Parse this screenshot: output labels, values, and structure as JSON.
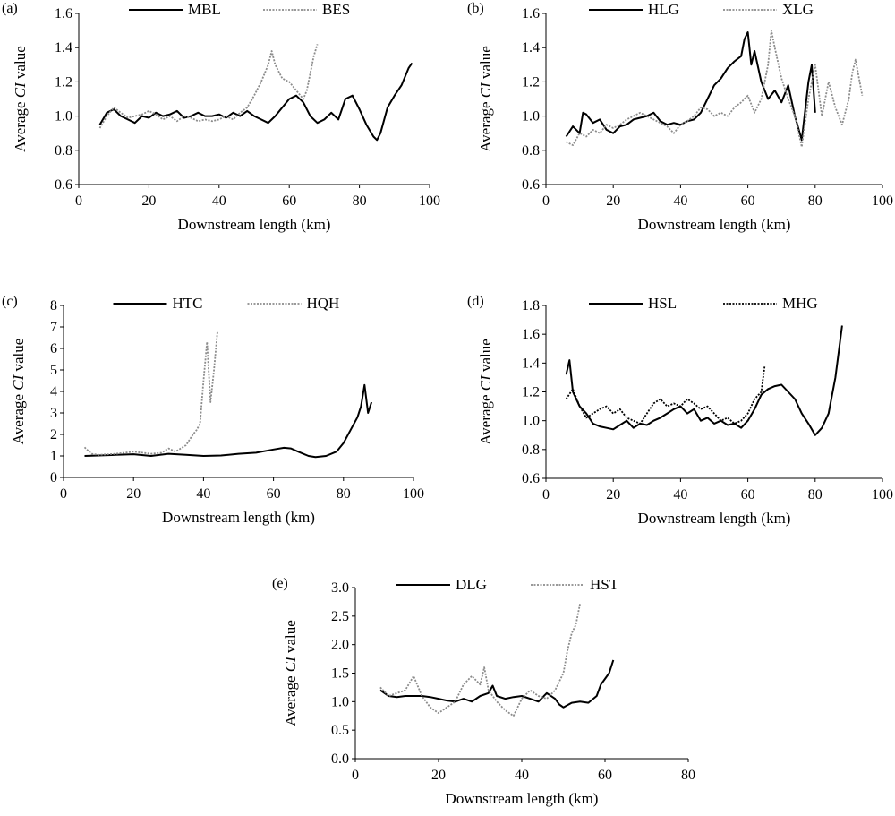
{
  "chart_data": [
    {
      "type": "line",
      "panel_label": "(a)",
      "xlabel": "Downstream length (km)",
      "ylabel_prefix": "Average ",
      "ylabel_italic": "CI",
      "ylabel_suffix": " value",
      "xlim": [
        0,
        100
      ],
      "xticks": [
        0,
        20,
        40,
        60,
        80,
        100
      ],
      "xtick_labels": [
        "0",
        "20",
        "40",
        "60",
        "80",
        "100"
      ],
      "ylim": [
        0.6,
        1.6
      ],
      "yticks": [
        0.6,
        0.8,
        1.0,
        1.2,
        1.4,
        1.6
      ],
      "ytick_labels": [
        "0.6",
        "0.8",
        "1.0",
        "1.2",
        "1.4",
        "1.6"
      ],
      "grid": false,
      "legend_position": "top",
      "series": [
        {
          "name": "MBL",
          "style": "solid",
          "color": "#000000",
          "x": [
            6,
            8,
            10,
            12,
            14,
            16,
            18,
            20,
            22,
            24,
            26,
            28,
            30,
            32,
            34,
            36,
            38,
            40,
            42,
            44,
            46,
            48,
            50,
            52,
            54,
            56,
            58,
            60,
            62,
            64,
            66,
            68,
            70,
            72,
            74,
            76,
            78,
            80,
            82,
            84,
            85,
            86,
            88,
            90,
            92,
            94,
            95
          ],
          "y": [
            0.95,
            1.02,
            1.04,
            1.0,
            0.98,
            0.96,
            1.0,
            0.99,
            1.02,
            1.0,
            1.01,
            1.03,
            0.99,
            1.0,
            1.02,
            1.0,
            1.0,
            1.01,
            0.99,
            1.02,
            1.0,
            1.03,
            1.0,
            0.98,
            0.96,
            1.0,
            1.05,
            1.1,
            1.12,
            1.08,
            1.0,
            0.96,
            0.98,
            1.02,
            0.98,
            1.1,
            1.12,
            1.04,
            0.95,
            0.88,
            0.86,
            0.9,
            1.05,
            1.12,
            1.18,
            1.28,
            1.31
          ]
        },
        {
          "name": "BES",
          "style": "dotted",
          "color": "#8c8c8c",
          "x": [
            6,
            8,
            10,
            12,
            14,
            16,
            18,
            20,
            22,
            24,
            26,
            28,
            30,
            32,
            34,
            36,
            38,
            40,
            42,
            44,
            46,
            48,
            50,
            52,
            54,
            55,
            56,
            58,
            60,
            62,
            64,
            65,
            66,
            67,
            68
          ],
          "y": [
            0.93,
            1.0,
            1.05,
            1.02,
            0.99,
            1.0,
            1.01,
            1.03,
            1.01,
            0.98,
            1.0,
            0.97,
            1.0,
            0.99,
            0.97,
            0.98,
            0.97,
            0.98,
            1.0,
            0.98,
            1.02,
            1.05,
            1.12,
            1.2,
            1.3,
            1.38,
            1.3,
            1.22,
            1.2,
            1.15,
            1.1,
            1.15,
            1.25,
            1.35,
            1.42
          ]
        }
      ]
    },
    {
      "type": "line",
      "panel_label": "(b)",
      "xlabel": "Downstream length (km)",
      "ylabel_prefix": "Average ",
      "ylabel_italic": "CI",
      "ylabel_suffix": " value",
      "xlim": [
        0,
        100
      ],
      "xticks": [
        0,
        20,
        40,
        60,
        80,
        100
      ],
      "xtick_labels": [
        "0",
        "20",
        "40",
        "60",
        "80",
        "100"
      ],
      "ylim": [
        0.6,
        1.6
      ],
      "yticks": [
        0.6,
        0.8,
        1.0,
        1.2,
        1.4,
        1.6
      ],
      "ytick_labels": [
        "0.6",
        "0.8",
        "1.0",
        "1.2",
        "1.4",
        "1.6"
      ],
      "grid": false,
      "legend_position": "top",
      "series": [
        {
          "name": "HLG",
          "style": "solid",
          "color": "#000000",
          "x": [
            6,
            8,
            10,
            11,
            12,
            14,
            16,
            18,
            20,
            22,
            24,
            26,
            28,
            30,
            32,
            34,
            36,
            38,
            40,
            42,
            44,
            46,
            48,
            50,
            52,
            54,
            56,
            58,
            59,
            60,
            61,
            62,
            64,
            66,
            68,
            70,
            72,
            74,
            76,
            78,
            79,
            80
          ],
          "y": [
            0.88,
            0.94,
            0.9,
            1.02,
            1.01,
            0.96,
            0.98,
            0.92,
            0.9,
            0.94,
            0.95,
            0.98,
            0.99,
            1.0,
            1.02,
            0.97,
            0.95,
            0.96,
            0.95,
            0.97,
            0.98,
            1.02,
            1.1,
            1.18,
            1.22,
            1.28,
            1.32,
            1.35,
            1.45,
            1.49,
            1.3,
            1.38,
            1.2,
            1.1,
            1.15,
            1.08,
            1.18,
            1.0,
            0.86,
            1.2,
            1.3,
            1.02
          ]
        },
        {
          "name": "XLG",
          "style": "dotted",
          "color": "#8c8c8c",
          "x": [
            6,
            8,
            10,
            12,
            14,
            16,
            18,
            20,
            22,
            24,
            26,
            28,
            30,
            32,
            34,
            36,
            38,
            40,
            42,
            44,
            46,
            48,
            50,
            52,
            54,
            56,
            58,
            60,
            62,
            64,
            66,
            67,
            68,
            70,
            72,
            74,
            76,
            78,
            80,
            82,
            84,
            86,
            88,
            90,
            91,
            92,
            94
          ],
          "y": [
            0.85,
            0.83,
            0.9,
            0.88,
            0.92,
            0.9,
            0.95,
            0.93,
            0.95,
            0.98,
            1.0,
            1.02,
            1.0,
            0.98,
            0.96,
            0.94,
            0.9,
            0.95,
            0.97,
            1.0,
            1.05,
            1.04,
            1.0,
            1.02,
            1.0,
            1.05,
            1.08,
            1.12,
            1.02,
            1.1,
            1.3,
            1.5,
            1.4,
            1.22,
            1.1,
            1.0,
            0.82,
            1.1,
            1.3,
            1.0,
            1.2,
            1.05,
            0.95,
            1.1,
            1.25,
            1.33,
            1.12
          ]
        }
      ]
    },
    {
      "type": "line",
      "panel_label": "(c)",
      "xlabel": "Downstream length (km)",
      "ylabel_prefix": "Average ",
      "ylabel_italic": "CI",
      "ylabel_suffix": " value",
      "xlim": [
        0,
        100
      ],
      "xticks": [
        0,
        20,
        40,
        60,
        80,
        100
      ],
      "xtick_labels": [
        "0",
        "20",
        "40",
        "60",
        "80",
        "100"
      ],
      "ylim": [
        0,
        8
      ],
      "yticks": [
        0,
        1,
        2,
        3,
        4,
        5,
        6,
        7,
        8
      ],
      "ytick_labels": [
        "0",
        "1",
        "2",
        "3",
        "4",
        "5",
        "6",
        "7",
        "8"
      ],
      "grid": false,
      "legend_position": "top",
      "series": [
        {
          "name": "HTC",
          "style": "solid",
          "color": "#000000",
          "x": [
            6,
            10,
            15,
            20,
            25,
            30,
            35,
            40,
            45,
            50,
            55,
            60,
            63,
            65,
            67,
            70,
            72,
            75,
            78,
            80,
            82,
            84,
            85,
            86,
            87,
            88
          ],
          "y": [
            1.0,
            1.02,
            1.05,
            1.08,
            1.0,
            1.1,
            1.05,
            1.0,
            1.02,
            1.1,
            1.15,
            1.3,
            1.38,
            1.35,
            1.2,
            1.0,
            0.95,
            1.0,
            1.2,
            1.6,
            2.2,
            2.8,
            3.3,
            4.3,
            3.0,
            3.5
          ]
        },
        {
          "name": "HQH",
          "style": "dotted",
          "color": "#8c8c8c",
          "x": [
            6,
            8,
            10,
            15,
            20,
            25,
            28,
            30,
            32,
            35,
            37,
            38,
            39,
            40,
            41,
            42,
            43,
            44
          ],
          "y": [
            1.4,
            1.1,
            1.05,
            1.1,
            1.2,
            1.1,
            1.15,
            1.35,
            1.2,
            1.5,
            2.0,
            2.2,
            2.5,
            4.5,
            6.3,
            3.5,
            5.0,
            6.8
          ]
        }
      ]
    },
    {
      "type": "line",
      "panel_label": "(d)",
      "xlabel": "Downstream length (km)",
      "ylabel_prefix": "Average ",
      "ylabel_italic": "CI",
      "ylabel_suffix": " value",
      "xlim": [
        0,
        100
      ],
      "xticks": [
        0,
        20,
        40,
        60,
        80,
        100
      ],
      "xtick_labels": [
        "0",
        "20",
        "40",
        "60",
        "80",
        "100"
      ],
      "ylim": [
        0.6,
        1.8
      ],
      "yticks": [
        0.6,
        0.8,
        1.0,
        1.2,
        1.4,
        1.6,
        1.8
      ],
      "ytick_labels": [
        "0.6",
        "0.8",
        "1.0",
        "1.2",
        "1.4",
        "1.6",
        "1.8"
      ],
      "grid": false,
      "legend_position": "top",
      "series": [
        {
          "name": "HSL",
          "style": "solid",
          "color": "#000000",
          "x": [
            6,
            7,
            8,
            10,
            12,
            14,
            16,
            18,
            20,
            22,
            24,
            26,
            28,
            30,
            32,
            34,
            36,
            38,
            40,
            42,
            44,
            46,
            48,
            50,
            52,
            54,
            56,
            58,
            60,
            62,
            64,
            66,
            68,
            70,
            72,
            74,
            76,
            78,
            80,
            82,
            84,
            86,
            88
          ],
          "y": [
            1.32,
            1.42,
            1.2,
            1.1,
            1.05,
            0.98,
            0.96,
            0.95,
            0.94,
            0.97,
            1.0,
            0.95,
            0.98,
            0.97,
            1.0,
            1.02,
            1.05,
            1.08,
            1.1,
            1.05,
            1.08,
            1.0,
            1.02,
            0.98,
            1.0,
            0.97,
            0.98,
            0.95,
            1.0,
            1.08,
            1.18,
            1.22,
            1.24,
            1.25,
            1.2,
            1.15,
            1.05,
            0.98,
            0.9,
            0.95,
            1.05,
            1.3,
            1.66
          ]
        },
        {
          "name": "MHG",
          "style": "dotted",
          "color": "#000000",
          "x": [
            6,
            8,
            10,
            12,
            14,
            16,
            18,
            20,
            22,
            24,
            26,
            28,
            30,
            32,
            34,
            36,
            38,
            40,
            42,
            44,
            46,
            48,
            50,
            52,
            54,
            56,
            58,
            60,
            62,
            64,
            65
          ],
          "y": [
            1.15,
            1.22,
            1.1,
            1.02,
            1.05,
            1.08,
            1.1,
            1.05,
            1.08,
            1.02,
            1.0,
            0.98,
            1.05,
            1.12,
            1.15,
            1.1,
            1.12,
            1.1,
            1.15,
            1.12,
            1.08,
            1.1,
            1.05,
            1.0,
            1.02,
            0.98,
            1.0,
            1.05,
            1.15,
            1.2,
            1.38
          ]
        }
      ]
    },
    {
      "type": "line",
      "panel_label": "(e)",
      "xlabel": "Downstream length (km)",
      "ylabel_prefix": "Average ",
      "ylabel_italic": "CI",
      "ylabel_suffix": " value",
      "xlim": [
        0,
        80
      ],
      "xticks": [
        0,
        20,
        40,
        60,
        80
      ],
      "xtick_labels": [
        "0",
        "20",
        "40",
        "60",
        "80"
      ],
      "ylim": [
        0,
        3
      ],
      "yticks": [
        0,
        0.5,
        1.0,
        1.5,
        2.0,
        2.5,
        3.0
      ],
      "ytick_labels": [
        "0.0",
        "0.5",
        "1.0",
        "1.5",
        "2.0",
        "2.5",
        "3.0"
      ],
      "grid": false,
      "legend_position": "top",
      "series": [
        {
          "name": "DLG",
          "style": "solid",
          "color": "#000000",
          "x": [
            6,
            8,
            10,
            12,
            14,
            16,
            18,
            20,
            22,
            24,
            26,
            28,
            30,
            32,
            33,
            34,
            36,
            38,
            40,
            42,
            44,
            46,
            48,
            49,
            50,
            52,
            54,
            56,
            58,
            59,
            60,
            61,
            62
          ],
          "y": [
            1.2,
            1.1,
            1.08,
            1.1,
            1.1,
            1.1,
            1.08,
            1.05,
            1.02,
            1.0,
            1.05,
            1.0,
            1.1,
            1.15,
            1.28,
            1.1,
            1.05,
            1.08,
            1.1,
            1.05,
            1.0,
            1.15,
            1.05,
            0.95,
            0.9,
            0.98,
            1.0,
            0.98,
            1.1,
            1.3,
            1.4,
            1.5,
            1.73
          ]
        },
        {
          "name": "HST",
          "style": "dotted",
          "color": "#8c8c8c",
          "x": [
            6,
            8,
            10,
            12,
            14,
            16,
            18,
            20,
            22,
            24,
            26,
            28,
            30,
            31,
            32,
            34,
            36,
            38,
            40,
            42,
            44,
            46,
            48,
            50,
            51,
            52,
            53,
            54
          ],
          "y": [
            1.25,
            1.1,
            1.15,
            1.2,
            1.45,
            1.1,
            0.9,
            0.8,
            0.9,
            1.0,
            1.3,
            1.45,
            1.3,
            1.6,
            1.2,
            1.0,
            0.85,
            0.75,
            1.05,
            1.2,
            1.1,
            1.05,
            1.2,
            1.5,
            1.9,
            2.2,
            2.35,
            2.72
          ]
        }
      ]
    }
  ]
}
